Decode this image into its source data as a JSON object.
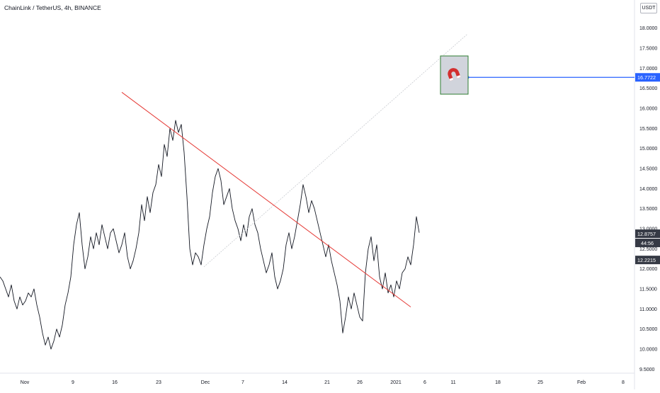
{
  "header": {
    "symbol": "ChainLink / TetherUS, 4h, BINANCE",
    "currency_button": "USDT"
  },
  "colors": {
    "price_line": "#131722",
    "trendline": "#e53935",
    "path_line": "#c8cbd0",
    "last_price": "#363a45",
    "target_label": "#2962ff",
    "box_fill": "#d1d4dc",
    "box_border": "#2e7d32",
    "magnet": "#d32f2f"
  },
  "chart_data": {
    "type": "line",
    "title": "ChainLink / TetherUS, 4h, BINANCE",
    "xlabel": "",
    "ylabel": "",
    "ylim": [
      9.4,
      18.7
    ],
    "x_tick_labels": [
      "Nov",
      "9",
      "16",
      "23",
      "Dec",
      "7",
      "14",
      "21",
      "26",
      "2021",
      "6",
      "11",
      "18",
      "25",
      "Feb",
      "8"
    ],
    "y_tick_labels": [
      "18.0000",
      "17.5000",
      "17.0000",
      "16.5000",
      "16.0000",
      "15.5000",
      "15.0000",
      "14.5000",
      "14.0000",
      "13.5000",
      "13.0000",
      "12.5000",
      "12.0000",
      "11.5000",
      "11.0000",
      "10.5000",
      "10.0000",
      "9.5000"
    ],
    "series": [
      {
        "values": [
          11.8,
          11.7,
          11.5,
          11.3,
          11.6,
          11.2,
          11.0,
          11.3,
          11.1,
          11.2,
          11.4,
          11.3,
          11.5,
          11.1,
          10.8,
          10.4,
          10.1,
          10.3,
          10.0,
          10.2,
          10.5,
          10.3,
          10.6,
          11.1,
          11.4,
          11.8,
          12.6,
          13.1,
          13.4,
          12.6,
          12.0,
          12.3,
          12.8,
          12.5,
          12.9,
          12.6,
          13.1,
          12.8,
          12.5,
          12.9,
          13.0,
          12.7,
          12.4,
          12.6,
          12.9,
          12.3,
          12.0,
          12.2,
          12.5,
          12.9,
          13.6,
          13.2,
          13.8,
          13.4,
          13.9,
          14.1,
          14.6,
          14.3,
          15.1,
          14.8,
          15.5,
          15.2,
          15.7,
          15.4,
          15.6,
          14.9,
          13.8,
          12.5,
          12.1,
          12.4,
          12.3,
          12.1,
          12.6,
          13.0,
          13.3,
          13.9,
          14.3,
          14.5,
          14.2,
          13.6,
          13.8,
          14.0,
          13.5,
          13.2,
          13.0,
          12.7,
          13.1,
          12.8,
          13.3,
          13.5,
          13.1,
          12.9,
          12.5,
          12.2,
          11.9,
          12.1,
          12.4,
          11.8,
          11.5,
          11.7,
          12.0,
          12.6,
          12.9,
          12.5,
          12.8,
          13.2,
          13.6,
          14.1,
          13.8,
          13.4,
          13.7,
          13.5,
          13.2,
          12.9,
          12.6,
          12.3,
          12.6,
          12.2,
          11.9,
          11.6,
          11.2,
          10.4,
          10.8,
          11.3,
          11.0,
          11.4,
          11.1,
          10.8,
          10.7,
          11.9,
          12.5,
          12.8,
          12.2,
          12.6,
          11.8,
          11.5,
          11.9,
          11.4,
          11.6,
          11.3,
          11.7,
          11.5,
          11.9,
          12.0,
          12.3,
          12.1,
          12.6,
          13.3,
          12.9
        ]
      }
    ],
    "last_price": 12.8757,
    "countdown": "44:56",
    "reference_price": 12.2215,
    "target_price": 16.7722,
    "trendline": {
      "from": {
        "x_index": 43,
        "y": 16.4
      },
      "to": {
        "x_index": 145,
        "y": 11.05
      }
    },
    "price_path_line": {
      "from": {
        "x_index": 72,
        "y": 12.05
      },
      "to": {
        "x_index": 165,
        "y": 17.85
      }
    },
    "annotations": [
      "magnet-icon",
      "horizontal-ray"
    ],
    "grid": false,
    "legend": "none"
  }
}
